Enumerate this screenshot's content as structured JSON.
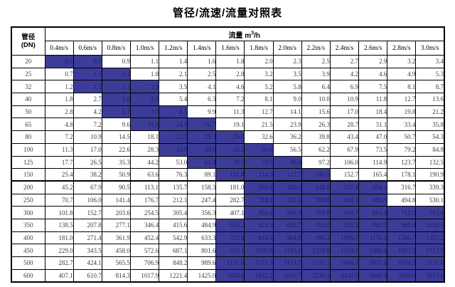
{
  "title": "管径/流速/流量对照表",
  "table": {
    "corner": {
      "line1": "管径",
      "line2": "(DN)"
    },
    "flow_unit": {
      "text": "流量 m",
      "sup": "3",
      "tail": "/h"
    },
    "velocities": [
      "0.4m/s",
      "0.6m/s",
      "0.8m/s",
      "1.0m/s",
      "1.2m/s",
      "1.4m/s",
      "1.6m/s",
      "1.8m/s",
      "2.0m/s",
      "2.2m/s",
      "2.4m/s",
      "2.6m/s",
      "2.8m/s",
      "3.0m/s"
    ],
    "rows": [
      {
        "dn": "20",
        "values": [
          "0.5",
          "0.7",
          "0.9",
          "1.1",
          "1.4",
          "1.6",
          "1.8",
          "2.0",
          "2.3",
          "2.5",
          "2.7",
          "2.9",
          "3.2",
          "3.4"
        ],
        "highlight": [
          0,
          1
        ]
      },
      {
        "dn": "25",
        "values": [
          "0.7",
          "1.1",
          "1.4",
          "1.8",
          "2.1",
          "2.5",
          "2.8",
          "3.2",
          "3.5",
          "3.9",
          "4.2",
          "4.6",
          "4.9",
          "5.3"
        ],
        "highlight": [
          1,
          2
        ]
      },
      {
        "dn": "32",
        "values": [
          "1.2",
          "1.7",
          "2.3",
          "2.9",
          "3.5",
          "4.1",
          "4.6",
          "5.2",
          "5.8",
          "6.4",
          "6.9",
          "7.5",
          "8.1",
          "8.7"
        ],
        "highlight": [
          1,
          3
        ]
      },
      {
        "dn": "40",
        "values": [
          "1.8",
          "2.7",
          "3.6",
          "4.5",
          "5.4",
          "6.3",
          "7.2",
          "8.1",
          "9.0",
          "10.0",
          "10.9",
          "11.8",
          "12.7",
          "13.6"
        ],
        "highlight": [
          2,
          3
        ]
      },
      {
        "dn": "50",
        "values": [
          "2.8",
          "4.2",
          "5.7",
          "7.1",
          "8.5",
          "9.9",
          "11.3",
          "12.7",
          "14.1",
          "15.6",
          "17.0",
          "18.4",
          "19.8",
          "21.2"
        ],
        "highlight": [
          2,
          4
        ]
      },
      {
        "dn": "65",
        "values": [
          "4.8",
          "7.2",
          "9.6",
          "11.9",
          "14.3",
          "16.7",
          "19.1",
          "21.5",
          "23.9",
          "26.3",
          "28.7",
          "31.1",
          "33.4",
          "35.8"
        ],
        "highlight": [
          3,
          5
        ]
      },
      {
        "dn": "80",
        "values": [
          "7.2",
          "10.9",
          "14.5",
          "18.1",
          "21.7",
          "25.3",
          "29.0",
          "32.6",
          "36.2",
          "39.8",
          "43.4",
          "47.0",
          "50.7",
          "54.3"
        ],
        "highlight": [
          4,
          6
        ]
      },
      {
        "dn": "100",
        "values": [
          "11.3",
          "17.0",
          "22.6",
          "28.3",
          "33.9",
          "39.6",
          "45.2",
          "50.9",
          "56.5",
          "62.2",
          "67.9",
          "73.5",
          "79.2",
          "84.8"
        ],
        "highlight": [
          4,
          7
        ]
      },
      {
        "dn": "125",
        "values": [
          "17.7",
          "26.5",
          "35.3",
          "44.2",
          "53.0",
          "61.9",
          "70.7",
          "79.5",
          "88.4",
          "97.2",
          "106.0",
          "114.9",
          "123.7",
          "132.5"
        ],
        "highlight": [
          5,
          8
        ]
      },
      {
        "dn": "150",
        "values": [
          "25.4",
          "38.2",
          "50.9",
          "63.6",
          "76.3",
          "89.1",
          "101.8",
          "114.5",
          "127.2",
          "140.0",
          "152.7",
          "165.4",
          "178.1",
          "190.9"
        ],
        "highlight": [
          6,
          9
        ]
      },
      {
        "dn": "200",
        "values": [
          "45.2",
          "67.9",
          "90.5",
          "113.1",
          "135.7",
          "158.3",
          "181.0",
          "203.6",
          "226.2",
          "248.8",
          "271.4",
          "294.1",
          "316.7",
          "339.3"
        ],
        "highlight": [
          7,
          11
        ],
        "section_break": true
      },
      {
        "dn": "250",
        "values": [
          "70.7",
          "106.0",
          "141.4",
          "176.7",
          "212.1",
          "247.4",
          "282.7",
          "318.1",
          "353.4",
          "388.8",
          "424.1",
          "459.5",
          "494.8",
          "530.1"
        ],
        "highlight": [
          7,
          11
        ]
      },
      {
        "dn": "300",
        "values": [
          "101.8",
          "152.7",
          "203.6",
          "254.5",
          "305.4",
          "356.3",
          "407.1",
          "458.0",
          "508.9",
          "559.8",
          "610.7",
          "661.6",
          "712.5",
          "763.4"
        ],
        "highlight": [
          7,
          13
        ]
      },
      {
        "dn": "350",
        "values": [
          "138.5",
          "207.8",
          "277.1",
          "346.4",
          "415.6",
          "484.9",
          "554.2",
          "623.4",
          "692.7",
          "762.0",
          "831.3",
          "900.5",
          "969.8",
          "1039.1"
        ],
        "highlight": [
          6,
          13
        ]
      },
      {
        "dn": "400",
        "values": [
          "181.0",
          "271.4",
          "361.9",
          "452.4",
          "542.9",
          "633.3",
          "723.8",
          "814.3",
          "904.8",
          "995.3",
          "1085.7",
          "1176.2",
          "1266.7",
          "1357.2"
        ],
        "highlight": [
          6,
          13
        ]
      },
      {
        "dn": "450",
        "values": [
          "229.0",
          "343.5",
          "458.0",
          "572.6",
          "687.1",
          "801.6",
          "916.1",
          "1030.6",
          "1145.1",
          "1259.6",
          "1374.1",
          "1488.6",
          "1603.2",
          "1717.7"
        ],
        "highlight": [
          6,
          13
        ]
      },
      {
        "dn": "500",
        "values": [
          "282.7",
          "424.1",
          "565.5",
          "706.9",
          "848.2",
          "989.6",
          "1131.0",
          "1272.3",
          "1413.7",
          "1555.1",
          "1696.5",
          "1837.8",
          "1979.2",
          "2120.6"
        ],
        "highlight": [
          6,
          13
        ]
      },
      {
        "dn": "600",
        "values": [
          "407.1",
          "610.7",
          "814.3",
          "1017.9",
          "1221.4",
          "1425.0",
          "1628.6",
          "1832.2",
          "2035.7",
          "2239.3",
          "2442.9",
          "2646.5",
          "2850.0",
          "3053.6"
        ],
        "highlight": [
          6,
          13
        ]
      }
    ]
  },
  "colors": {
    "highlight_bg": "#3d3d99",
    "highlight_text": "#1c1c6e",
    "number_text": "#3d3d3d",
    "border": "#000000"
  }
}
